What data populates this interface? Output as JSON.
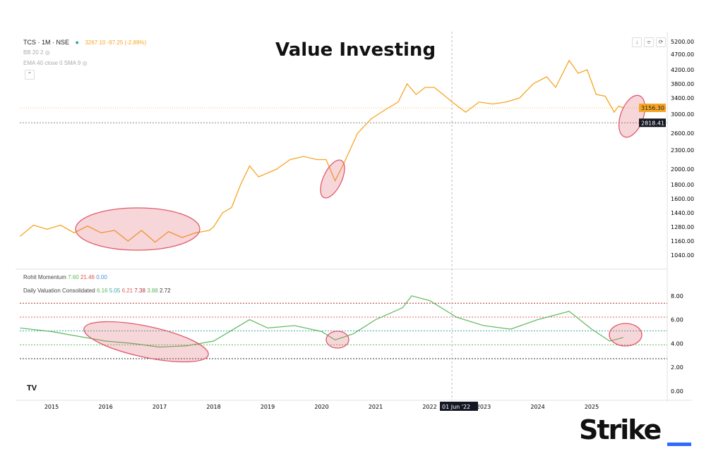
{
  "header": {
    "symbol": "TCS · 1M · NSE",
    "quote": "3267.10 -97.25 (-2.89%)",
    "bb": "BB 20 2",
    "ema": "EMA 40 close 0 SMA 9",
    "title": "Value Investing"
  },
  "colors": {
    "price": "#f5a623",
    "indicator": "#5cb85c",
    "annotation": "#e05a6a",
    "quote": "#f5a623"
  },
  "chart_data": [
    {
      "type": "line",
      "title": "Value Investing",
      "y_scale": "log-like",
      "price_ticks": [
        "5200.00",
        "4700.00",
        "4200.00",
        "3800.00",
        "3400.00",
        "3000.00",
        "2600.00",
        "2300.00",
        "2000.00",
        "1800.00",
        "1600.00",
        "1440.00",
        "1280.00",
        "1160.00",
        "1040.00"
      ],
      "last_price_label": "3156.30",
      "crosshair_price_label": "2818.41",
      "x": [
        "2014-06",
        "2014-09",
        "2014-12",
        "2015-03",
        "2015-06",
        "2015-09",
        "2015-12",
        "2016-03",
        "2016-06",
        "2016-09",
        "2016-12",
        "2017-03",
        "2017-06",
        "2017-09",
        "2017-12",
        "2018-01",
        "2018-03",
        "2018-05",
        "2018-07",
        "2018-09",
        "2018-11",
        "2019-01",
        "2019-03",
        "2019-06",
        "2019-09",
        "2019-12",
        "2020-02",
        "2020-04",
        "2020-06",
        "2020-09",
        "2020-12",
        "2021-03",
        "2021-06",
        "2021-08",
        "2021-10",
        "2021-12",
        "2022-02",
        "2022-04",
        "2022-06",
        "2022-09",
        "2022-12",
        "2023-03",
        "2023-06",
        "2023-09",
        "2023-12",
        "2024-03",
        "2024-05",
        "2024-08",
        "2024-10",
        "2024-12",
        "2025-02",
        "2025-04",
        "2025-06",
        "2025-07",
        "2025-08"
      ],
      "values": [
        1200,
        1300,
        1260,
        1300,
        1230,
        1290,
        1230,
        1250,
        1160,
        1250,
        1150,
        1240,
        1190,
        1230,
        1250,
        1280,
        1440,
        1500,
        1800,
        2050,
        1900,
        1950,
        2000,
        2150,
        2200,
        2150,
        2150,
        1850,
        2100,
        2600,
        2900,
        3100,
        3300,
        3800,
        3500,
        3700,
        3700,
        3500,
        3300,
        3050,
        3300,
        3250,
        3300,
        3400,
        3800,
        4000,
        3700,
        4500,
        4100,
        4200,
        3500,
        3450,
        3050,
        3200,
        3156
      ]
    },
    {
      "type": "line",
      "legend": [
        {
          "label": "Rohit Momentum",
          "values": [
            "7.60",
            "21.46",
            "0.00"
          ]
        },
        {
          "label": "Daily Valuation Consolidated",
          "values": [
            "6.16",
            "5.05",
            "6.21",
            "7.38",
            "3.88",
            "2.72"
          ]
        }
      ],
      "ylim": [
        0,
        8.5
      ],
      "ticks": [
        "8.00",
        "6.00",
        "4.00",
        "2.00",
        "0.00"
      ],
      "levels": [
        {
          "value": 7.38,
          "color": "#b03030"
        },
        {
          "value": 6.21,
          "color": "#e06060"
        },
        {
          "value": 5.05,
          "color": "#3aa7a7"
        },
        {
          "value": 3.88,
          "color": "#5cb85c"
        },
        {
          "value": 2.72,
          "color": "#333333"
        }
      ],
      "x": [
        "2014-06",
        "2015-01",
        "2016-01",
        "2016-07",
        "2017-01",
        "2017-07",
        "2018-01",
        "2018-09",
        "2019-01",
        "2019-07",
        "2020-01",
        "2020-04",
        "2020-08",
        "2021-01",
        "2021-07",
        "2021-09",
        "2022-01",
        "2022-07",
        "2023-01",
        "2023-07",
        "2024-01",
        "2024-08",
        "2025-01",
        "2025-05",
        "2025-08"
      ],
      "values": [
        5.3,
        5.0,
        4.2,
        4.0,
        3.7,
        3.8,
        4.2,
        6.0,
        5.3,
        5.5,
        5.0,
        4.3,
        4.8,
        6.0,
        7.0,
        8.0,
        7.6,
        6.2,
        5.5,
        5.2,
        6.0,
        6.7,
        5.2,
        4.2,
        4.5
      ]
    }
  ],
  "xaxis": {
    "ticks": [
      "2015",
      "2016",
      "2017",
      "2018",
      "2019",
      "2020",
      "2021",
      "2022",
      "2023",
      "2024",
      "2025"
    ],
    "crosshair_label": "01 Jun '22"
  },
  "logo": "Strike"
}
